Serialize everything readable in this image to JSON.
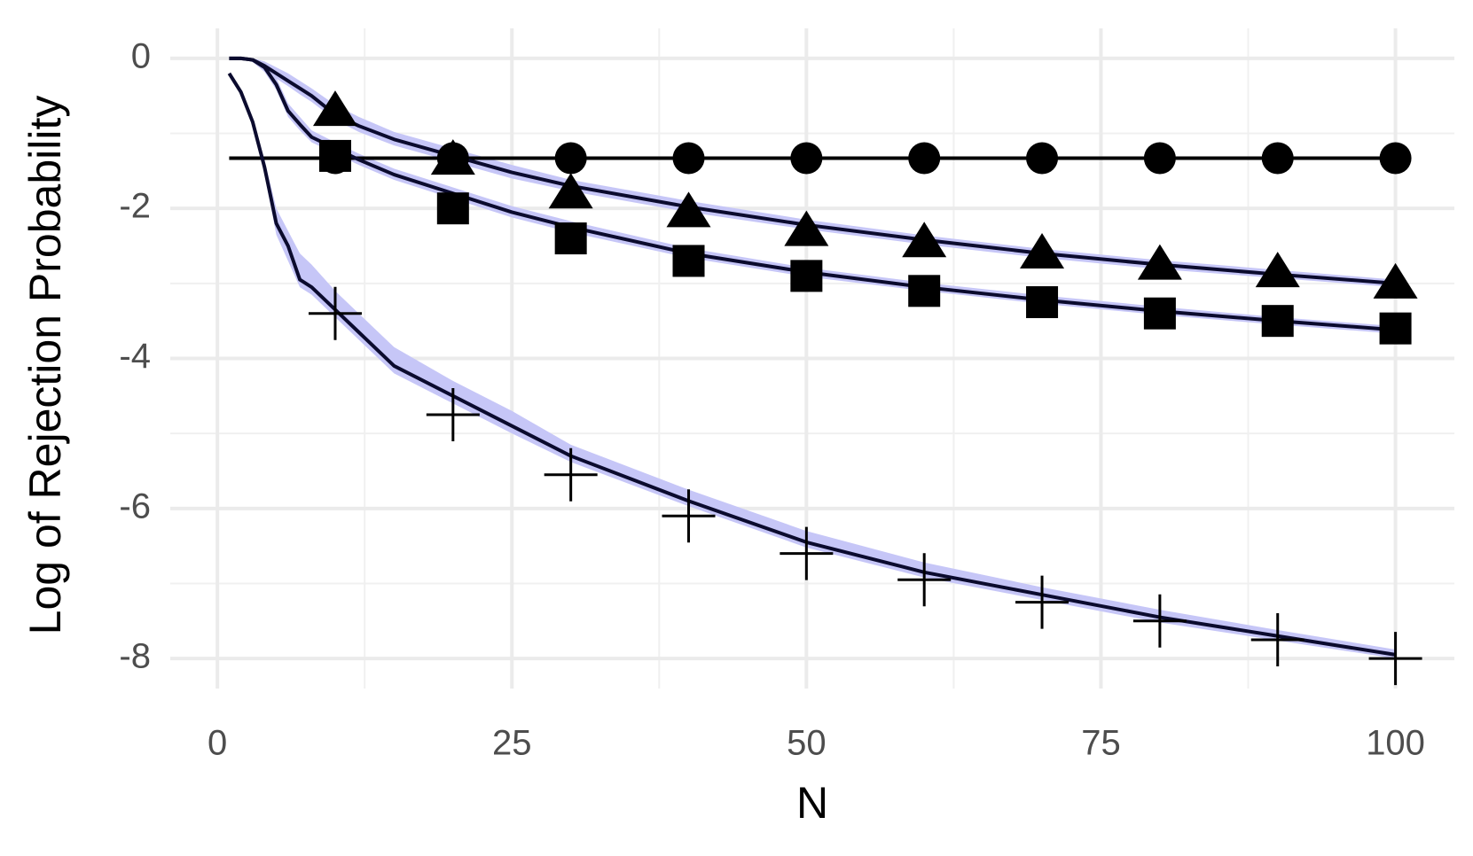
{
  "chart_data": {
    "type": "line",
    "x_label": "N",
    "y_label": "Log of Rejection Probability",
    "xlim": [
      -4,
      105
    ],
    "ylim": [
      -8.4,
      0.4
    ],
    "xticks": [
      0,
      25,
      50,
      75,
      100
    ],
    "yticks": [
      0,
      -2,
      -4,
      -6,
      -8
    ],
    "xminor": [
      12.5,
      37.5,
      62.5,
      87.5
    ],
    "yminor": [
      -1,
      -3,
      -5,
      -7
    ],
    "grid": true,
    "x": [
      1,
      2,
      3,
      4,
      5,
      6,
      7,
      8,
      10,
      12,
      15,
      20,
      25,
      30,
      40,
      50,
      60,
      70,
      80,
      90,
      100
    ],
    "marker_x": [
      10,
      20,
      30,
      40,
      50,
      60,
      70,
      80,
      90,
      100
    ],
    "series": [
      {
        "marker": "circle",
        "color": "#000000",
        "values": [
          -1.33,
          -1.33,
          -1.33,
          -1.33,
          -1.33,
          -1.33,
          -1.33,
          -1.33,
          -1.33,
          -1.33,
          -1.33,
          -1.33,
          -1.33,
          -1.33,
          -1.33,
          -1.33,
          -1.33,
          -1.33,
          -1.33,
          -1.33,
          -1.33
        ],
        "marker_values": [
          -1.33,
          -1.33,
          -1.33,
          -1.33,
          -1.33,
          -1.33,
          -1.33,
          -1.33,
          -1.33,
          -1.33
        ]
      },
      {
        "marker": "triangle",
        "color": "#0b0b2e",
        "band_color": "#c6c6f7",
        "values": [
          0,
          0,
          -0.02,
          -0.1,
          -0.2,
          -0.3,
          -0.4,
          -0.5,
          -0.75,
          -0.9,
          -1.08,
          -1.3,
          -1.52,
          -1.7,
          -1.98,
          -2.22,
          -2.42,
          -2.6,
          -2.75,
          -2.88,
          -3.0
        ],
        "lower": [
          0,
          0,
          -0.05,
          -0.15,
          -0.27,
          -0.37,
          -0.48,
          -0.58,
          -0.82,
          -0.98,
          -1.16,
          -1.38,
          -1.6,
          -1.77,
          -2.05,
          -2.28,
          -2.48,
          -2.66,
          -2.81,
          -2.93,
          -3.05
        ],
        "upper": [
          0,
          0,
          0,
          -0.04,
          -0.12,
          -0.2,
          -0.3,
          -0.4,
          -0.62,
          -0.78,
          -0.98,
          -1.2,
          -1.42,
          -1.62,
          -1.9,
          -2.15,
          -2.36,
          -2.54,
          -2.69,
          -2.82,
          -2.95
        ],
        "marker_values": [
          -0.7,
          -1.35,
          -1.8,
          -2.05,
          -2.3,
          -2.45,
          -2.6,
          -2.75,
          -2.85,
          -3.0
        ]
      },
      {
        "marker": "square",
        "color": "#0b0b2e",
        "band_color": "#c6c6f7",
        "values": [
          0,
          0,
          -0.02,
          -0.12,
          -0.35,
          -0.7,
          -0.88,
          -1.05,
          -1.2,
          -1.35,
          -1.55,
          -1.8,
          -2.05,
          -2.25,
          -2.6,
          -2.85,
          -3.05,
          -3.22,
          -3.37,
          -3.5,
          -3.62
        ],
        "lower": [
          0,
          0,
          -0.05,
          -0.18,
          -0.42,
          -0.78,
          -0.96,
          -1.12,
          -1.27,
          -1.42,
          -1.62,
          -1.87,
          -2.12,
          -2.32,
          -2.66,
          -2.91,
          -3.1,
          -3.27,
          -3.42,
          -3.55,
          -3.67
        ],
        "upper": [
          0,
          0,
          0,
          -0.06,
          -0.26,
          -0.6,
          -0.78,
          -0.96,
          -1.12,
          -1.27,
          -1.47,
          -1.72,
          -1.97,
          -2.17,
          -2.53,
          -2.79,
          -2.99,
          -3.16,
          -3.31,
          -3.45,
          -3.57
        ],
        "marker_values": [
          -1.3,
          -2.0,
          -2.4,
          -2.7,
          -2.9,
          -3.1,
          -3.25,
          -3.4,
          -3.5,
          -3.6
        ]
      },
      {
        "marker": "plus",
        "color": "#0b0b2e",
        "band_color": "#c6c6f7",
        "values": [
          -0.2,
          -0.45,
          -0.85,
          -1.45,
          -2.2,
          -2.5,
          -2.95,
          -3.05,
          -3.35,
          -3.65,
          -4.1,
          -4.5,
          -4.9,
          -5.3,
          -5.9,
          -6.45,
          -6.85,
          -7.15,
          -7.45,
          -7.7,
          -7.95
        ],
        "lower": [
          -0.2,
          -0.45,
          -0.9,
          -1.55,
          -2.35,
          -2.7,
          -3.05,
          -3.15,
          -3.45,
          -3.75,
          -4.2,
          -4.6,
          -5.0,
          -5.38,
          -5.97,
          -6.52,
          -6.92,
          -7.22,
          -7.52,
          -7.76,
          -8.0
        ],
        "upper": [
          -0.2,
          -0.45,
          -0.8,
          -1.35,
          -2.0,
          -2.3,
          -2.6,
          -2.75,
          -3.1,
          -3.4,
          -3.85,
          -4.3,
          -4.7,
          -5.15,
          -5.75,
          -6.3,
          -6.72,
          -7.05,
          -7.35,
          -7.62,
          -7.88
        ],
        "marker_values": [
          -3.4,
          -4.75,
          -5.55,
          -6.1,
          -6.6,
          -6.95,
          -7.25,
          -7.5,
          -7.75,
          -8.0
        ]
      }
    ]
  }
}
